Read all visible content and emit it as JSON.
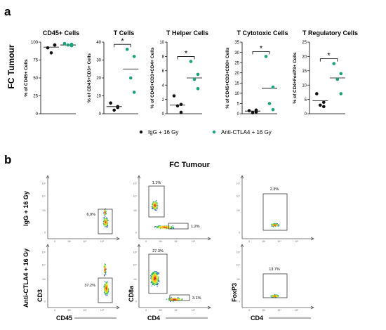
{
  "panel_a": {
    "label": "a",
    "row_label": "FC Tumour",
    "legend": [
      {
        "label": "IgG + 16 Gy",
        "color": "#111111"
      },
      {
        "label": "Anti-CTLA4 + 16 Gy",
        "color": "#1aa37a"
      }
    ]
  },
  "chart_data": [
    {
      "type": "scatter",
      "title": "CD45+ Cells",
      "ylabel": "% of CD45+ Cells",
      "ylim": [
        0,
        100
      ],
      "yticks": [
        0,
        25,
        50,
        75,
        100
      ],
      "significance": "",
      "series": [
        {
          "name": "IgG + 16 Gy",
          "values": [
            92,
            96,
            85,
            96
          ],
          "mean": 93
        },
        {
          "name": "Anti-CTLA4 + 16 Gy",
          "values": [
            98,
            95,
            96,
            97
          ],
          "mean": 96
        }
      ]
    },
    {
      "type": "scatter",
      "title": "T Cells",
      "ylabel": "% of CD45+CD3+ Cells",
      "ylim": [
        0,
        40
      ],
      "yticks": [
        0,
        10,
        20,
        30,
        40
      ],
      "significance": "*",
      "series": [
        {
          "name": "IgG + 16 Gy",
          "values": [
            6,
            4,
            2,
            3.5
          ],
          "mean": 4
        },
        {
          "name": "Anti-CTLA4 + 16 Gy",
          "values": [
            36,
            32,
            20,
            12
          ],
          "mean": 25
        }
      ]
    },
    {
      "type": "scatter",
      "title": "T Helper Cells",
      "ylabel": "% of CD45+CD3+CD4+ Cells",
      "ylim": [
        0,
        10
      ],
      "yticks": [
        0,
        2,
        4,
        6,
        8,
        10
      ],
      "significance": "*",
      "series": [
        {
          "name": "IgG + 16 Gy",
          "values": [
            2.5,
            1.3,
            1.1,
            0.2
          ],
          "mean": 1.2
        },
        {
          "name": "Anti-CTLA4 + 16 Gy",
          "values": [
            7.3,
            5.5,
            4.8,
            3.5
          ],
          "mean": 5
        }
      ]
    },
    {
      "type": "scatter",
      "title": "T Cytotoxic Cells",
      "ylabel": "% of CD45+CD3+CD8+ Cells",
      "ylim": [
        0,
        35
      ],
      "yticks": [
        0,
        5,
        10,
        15,
        20,
        25,
        30,
        35
      ],
      "significance": "*",
      "series": [
        {
          "name": "IgG + 16 Gy",
          "values": [
            1.5,
            1.8,
            0.5,
            0.8
          ],
          "mean": 1.3
        },
        {
          "name": "Anti-CTLA4 + 16 Gy",
          "values": [
            28,
            13,
            5,
            2
          ],
          "mean": 12.5
        }
      ]
    },
    {
      "type": "scatter",
      "title": "T Regulatory Cells",
      "ylabel": "% of CD4+FoxP3+ Cells",
      "ylim": [
        0,
        25
      ],
      "yticks": [
        0,
        5,
        10,
        15,
        20,
        25
      ],
      "significance": "*",
      "series": [
        {
          "name": "IgG + 16 Gy",
          "values": [
            7,
            4,
            3,
            2.5
          ],
          "mean": 4.5
        },
        {
          "name": "Anti-CTLA4 + 16 Gy",
          "values": [
            17.5,
            14,
            12,
            7
          ],
          "mean": 12.5
        }
      ]
    }
  ],
  "panel_b": {
    "label": "b",
    "title": "FC Tumour",
    "row_labels": [
      "IgG + 16 Gy",
      "Anti-CTLA4 + 16 Gy"
    ],
    "columns": [
      {
        "xlabel": "CD45",
        "ylabel": "CD3",
        "gates": [
          [
            "6.0%"
          ],
          [
            "37.2%"
          ]
        ]
      },
      {
        "xlabel": "CD4",
        "ylabel": "CD8a",
        "gates": [
          [
            "1.1%",
            "1.2%"
          ],
          [
            "27.3%",
            "3.1%"
          ]
        ]
      },
      {
        "xlabel": "CD4",
        "ylabel": "FoxP3",
        "gates": [
          [
            "2.3%"
          ],
          [
            "13.7%"
          ]
        ]
      }
    ],
    "axis_tick_labels": [
      "10⁵",
      "10⁴",
      "10³",
      "0"
    ]
  }
}
